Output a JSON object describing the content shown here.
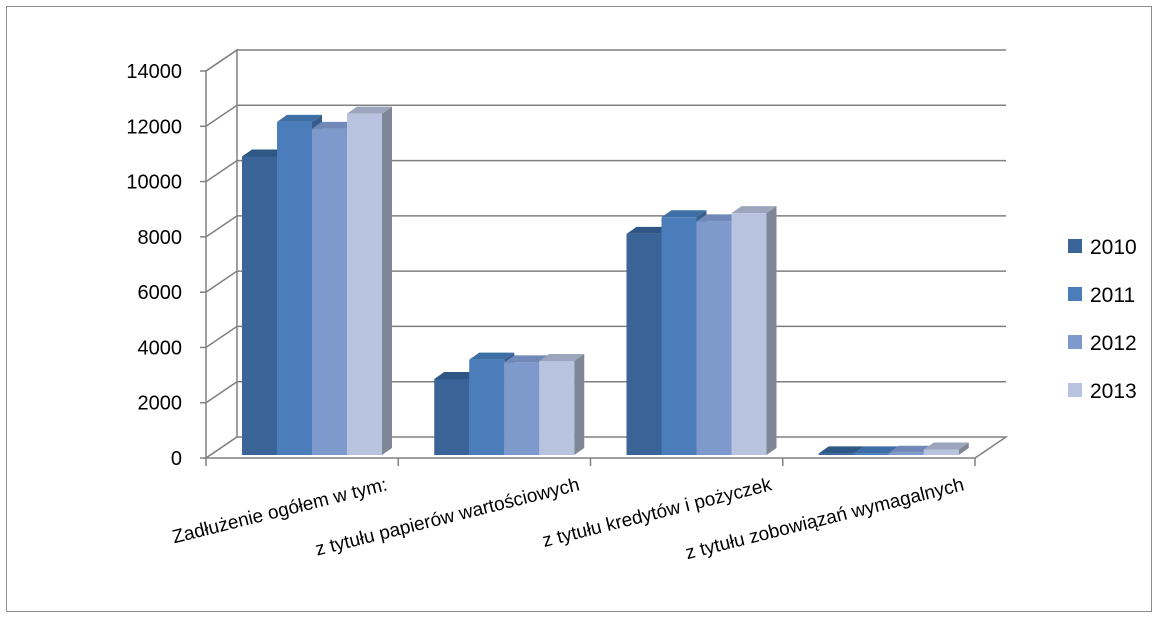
{
  "chart_data": {
    "type": "bar",
    "subtype": "3d-clustered-column",
    "categories": [
      "Zadłużenie ogółem w tym:",
      "z tytułu papierów wartościowych",
      "z tytułu kredytów i pożyczek",
      "z tytułu zobowiązań wymagalnych"
    ],
    "series": [
      {
        "name": "2010",
        "values": [
          10800,
          2750,
          8000,
          60
        ],
        "color": "#3A6497",
        "side_color": "#2A4A72",
        "top_color": "#2F5785"
      },
      {
        "name": "2011",
        "values": [
          12050,
          3450,
          8600,
          60
        ],
        "color": "#4A7DBA",
        "side_color": "#375D8C",
        "top_color": "#3E6EA6"
      },
      {
        "name": "2012",
        "values": [
          11800,
          3350,
          8450,
          80
        ],
        "color": "#7E9ACC",
        "side_color": "#5E759D",
        "top_color": "#7089B8"
      },
      {
        "name": "2013",
        "values": [
          12350,
          3400,
          8750,
          200
        ],
        "color": "#B8C4DF",
        "side_color": "#7F8797",
        "top_color": "#9BA6BD"
      }
    ],
    "y_ticks": [
      "0",
      "2000",
      "4000",
      "6000",
      "8000",
      "10000",
      "12000",
      "14000"
    ],
    "ylim": [
      0,
      14000
    ],
    "title": "",
    "xlabel": "",
    "ylabel": "",
    "grid": true,
    "legend_position": "right",
    "colors": {
      "grid": "#808080",
      "axis": "#808080",
      "text": "#000000",
      "frame": "#8c8c8c"
    }
  }
}
